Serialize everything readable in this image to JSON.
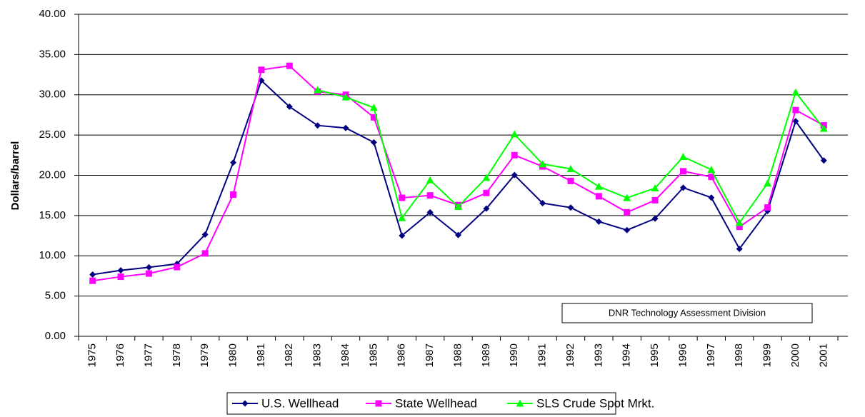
{
  "chart_data": {
    "type": "line",
    "y_label": "Dollars/barrel",
    "annotation": "DNR Technology Assessment Division",
    "categories": [
      "1975",
      "1976",
      "1977",
      "1978",
      "1979",
      "1980",
      "1981",
      "1982",
      "1983",
      "1984",
      "1985",
      "1986",
      "1987",
      "1988",
      "1989",
      "1990",
      "1991",
      "1992",
      "1993",
      "1994",
      "1995",
      "1996",
      "1997",
      "1998",
      "1999",
      "2000",
      "2001"
    ],
    "series": [
      {
        "name": "U.S. Wellhead",
        "color": "#000080",
        "marker": "diamond",
        "values": [
          7.67,
          8.19,
          8.57,
          9.0,
          12.64,
          21.59,
          31.77,
          28.52,
          26.19,
          25.88,
          24.09,
          12.51,
          15.4,
          12.58,
          15.86,
          20.03,
          16.54,
          15.99,
          14.25,
          13.19,
          14.62,
          18.46,
          17.23,
          10.87,
          15.56,
          26.72,
          21.84
        ]
      },
      {
        "name": "State Wellhead",
        "color": "#ff00ff",
        "marker": "square",
        "values": [
          6.9,
          7.4,
          7.8,
          8.6,
          10.3,
          17.6,
          33.1,
          33.6,
          30.4,
          30.0,
          27.2,
          17.2,
          17.5,
          16.3,
          17.8,
          22.5,
          21.1,
          19.3,
          17.4,
          15.4,
          16.9,
          20.5,
          19.8,
          13.6,
          16.0,
          28.1,
          26.2
        ]
      },
      {
        "name": "SLS Crude Spot Mrkt.",
        "color": "#00ff00",
        "marker": "triangle",
        "values": [
          null,
          null,
          null,
          null,
          null,
          null,
          null,
          null,
          30.6,
          29.7,
          28.4,
          14.7,
          19.4,
          16.1,
          19.7,
          25.1,
          21.4,
          20.8,
          18.6,
          17.2,
          18.4,
          22.3,
          20.7,
          14.1,
          19.0,
          30.3,
          25.8
        ]
      }
    ],
    "ylim": [
      0,
      40
    ],
    "yticks": [
      {
        "value": 0,
        "label": "0.00"
      },
      {
        "value": 5,
        "label": "5.00"
      },
      {
        "value": 10,
        "label": "10.00"
      },
      {
        "value": 15,
        "label": "15.00"
      },
      {
        "value": 20,
        "label": "20.00"
      },
      {
        "value": 25,
        "label": "25.00"
      },
      {
        "value": 30,
        "label": "30.00"
      },
      {
        "value": 35,
        "label": "35.00"
      },
      {
        "value": 40,
        "label": "40.00"
      }
    ],
    "grid": true,
    "legend": "bottom"
  }
}
